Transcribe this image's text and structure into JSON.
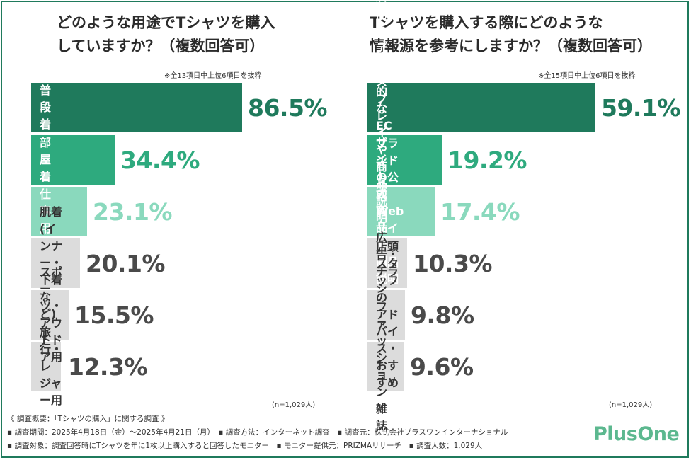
{
  "chart_data": [
    {
      "type": "bar",
      "orientation": "horizontal",
      "title": "どのような用途でTシャツを購入\nしていますか？（複数回答可）",
      "note": "※全13項目中上位6項目を抜粋",
      "categories": [
        "普段着",
        "部屋着",
        "仕事用",
        "肌着\n(インナー・下着など)",
        "スポーツ・\nアウトドア用",
        "旅行・\nレジャー用"
      ],
      "values": [
        86.5,
        34.4,
        23.1,
        20.1,
        15.5,
        12.3
      ],
      "value_labels": [
        "86.5%",
        "34.4%",
        "23.1%",
        "20.1%",
        "15.5%",
        "12.3%"
      ],
      "unit": "%",
      "n_label": "(n=1,029人)",
      "xlim": [
        0,
        100
      ]
    },
    {
      "type": "bar",
      "orientation": "horizontal",
      "title": "Tシャツを購入する際にどのような\n情報源を参考にしますか？（複数回答可）",
      "note": "※全15項目中上位6項目を抜粋",
      "categories": [
        "店内のディスプレイや商品説明",
        "一般的なECサイトの商品説明",
        "ブランドの公式Webサイトの\n商品説明",
        "広告・チラシ",
        "店頭スタッフの\nアドバイス・おすすめ",
        "ファッション雑誌"
      ],
      "values": [
        59.1,
        19.2,
        17.4,
        10.3,
        9.8,
        9.6
      ],
      "value_labels": [
        "59.1%",
        "19.2%",
        "17.4%",
        "10.3%",
        "9.8%",
        "9.6%"
      ],
      "unit": "%",
      "n_label": "(n=1,029人)",
      "xlim": [
        0,
        69
      ]
    }
  ],
  "colors": {
    "tier1": "#1f7a5c",
    "tier2": "#2eaa7e",
    "tier3": "#8ad9bd",
    "tier_rest": "#dcdcdc",
    "text_dark": "#4a4a4a",
    "border": "#1f7a5c",
    "logo": "#5cb88f"
  },
  "footer": {
    "line1": "《 調査概要：「Tシャツの購入」に関する調査 》",
    "line2": "▪ 調査期間：2025年4月18日（金）〜2025年4月21日（月）　▪ 調査方法：インターネット調査　▪ 調査元：株式会社プラスワンインターナショナル",
    "line3": "▪ 調査対象：調査回答時にTシャツを年に1枚以上購入すると回答したモニター　▪ モニター提供元：PRIZMAリサーチ　▪ 調査人数：1,029人"
  },
  "logo": {
    "text": "PlusOne"
  }
}
